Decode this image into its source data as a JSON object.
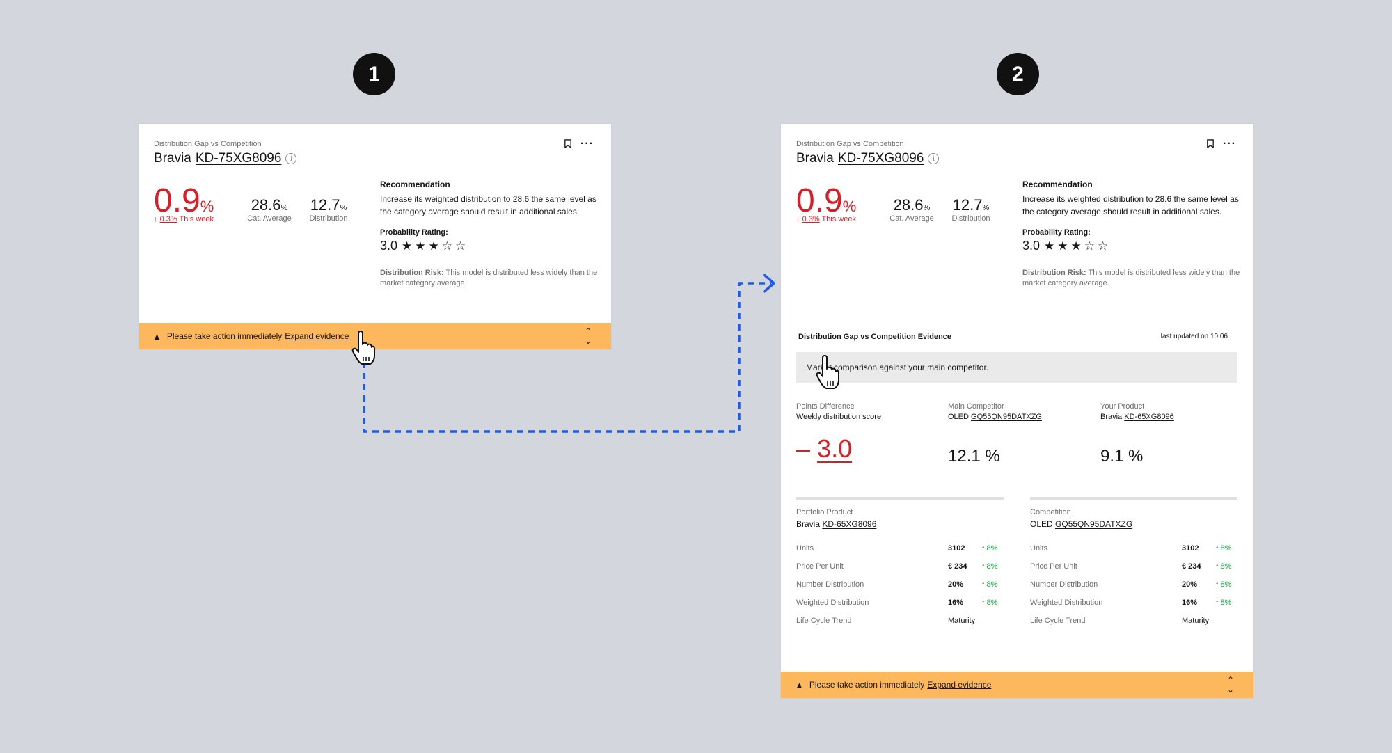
{
  "steps": [
    "1",
    "2"
  ],
  "card": {
    "subtitle": "Distribution Gap vs Competition",
    "brand": "Bravia",
    "model": "KD-75XG8096",
    "main_value": "0.9",
    "main_unit": "%",
    "trend_amount": "0.3%",
    "trend_label": "This week",
    "cat_average_value": "28.6",
    "cat_average_unit": "%",
    "cat_average_label": "Cat. Average",
    "distribution_value": "12.7",
    "distribution_unit": "%",
    "distribution_label": "Distribution",
    "recommendation_heading": "Recommendation",
    "recommendation_pre": "Increase its weighted distribution to ",
    "recommendation_highlight": "28.6",
    "recommendation_post": " the same level as the category average should result in additional sales.",
    "probability_label": "Probability Rating:",
    "probability_value": "3.0",
    "probability_stars": 3,
    "probability_max": 5,
    "risk_label": "Distribution Risk:",
    "risk_text": " This model is distributed less widely than the market category average.",
    "alert_text": "Please take action immediately",
    "alert_link": "Expand evidence"
  },
  "evidence": {
    "title": "Distribution Gap vs Competition Evidence",
    "updated": "last updated on 10.06",
    "banner_text": "Market comparison against your main competitor.",
    "points_diff_label": "Points Difference",
    "points_diff_sub": "Weekly distribution score",
    "competitor_label": "Main Competitor",
    "competitor_brand": "OLED",
    "competitor_model": "GQ55QN95DATXZG",
    "your_label": "Your Product",
    "your_brand": "Bravia",
    "your_model": "KD-65XG8096",
    "diff_sign": "–",
    "diff_value": "3.0",
    "competitor_value": "12.1 %",
    "your_value": "9.1 %",
    "portfolio_label": "Portfolio Product",
    "portfolio_brand": "Bravia",
    "portfolio_model": "KD-65XG8096",
    "competition_label": "Competition",
    "competition_brand": "OLED",
    "competition_model": "GQ55QN95DATXZG",
    "rows": [
      {
        "name": "Units",
        "value": "3102",
        "change": "8%"
      },
      {
        "name": "Price Per Unit",
        "value": "€ 234",
        "change": "8%"
      },
      {
        "name": "Number Distribution",
        "value": "20%",
        "change": "8%"
      },
      {
        "name": "Weighted Distribution",
        "value": "16%",
        "change": "8%"
      },
      {
        "name": "Life Cycle Trend",
        "value": "Maturity",
        "change": ""
      }
    ]
  },
  "colors": {
    "background": "#d3d6dd",
    "negative": "#da1e28",
    "positive": "#24a148",
    "alert": "#fdb85d",
    "connector": "#1f5be6"
  }
}
